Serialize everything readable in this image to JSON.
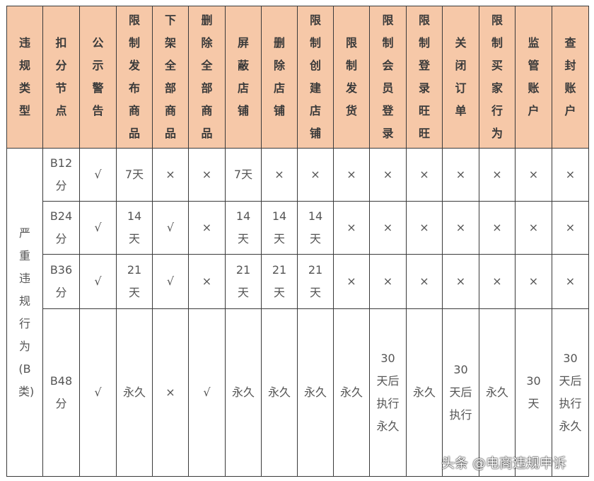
{
  "table": {
    "headers": [
      "违规类型",
      "扣分节点",
      "公示警告",
      "限制发布商品",
      "下架全部商品",
      "删除全部商品",
      "屏蔽店铺",
      "删除店铺",
      "限制创建店铺",
      "限制发货",
      "限制会员登录",
      "限制登录旺旺",
      "关闭订单",
      "限制买家行为",
      "监管账户",
      "查封账户"
    ],
    "category": "严重违规行为(B类)",
    "rows": [
      [
        "B12分",
        "√",
        "7天",
        "×",
        "×",
        "7天",
        "×",
        "×",
        "×",
        "×",
        "×",
        "×",
        "×",
        "×",
        "×"
      ],
      [
        "B24分",
        "√",
        "14天",
        "√",
        "×",
        "14天",
        "14天",
        "14天",
        "×",
        "×",
        "×",
        "×",
        "×",
        "×",
        "×"
      ],
      [
        "B36分",
        "√",
        "21天",
        "√",
        "×",
        "21天",
        "21天",
        "21天",
        "×",
        "×",
        "×",
        "×",
        "×",
        "×",
        "×"
      ],
      [
        "B48分",
        "√",
        "永久",
        "×",
        "√",
        "永久",
        "永久",
        "永久",
        "永久",
        "30天后执行永久",
        "永久",
        "30天后执行",
        "永久",
        "30天",
        "30天后执行永久"
      ]
    ],
    "header_bg": "#f6c8a8"
  },
  "watermark": "头条 @电商违规申诉"
}
